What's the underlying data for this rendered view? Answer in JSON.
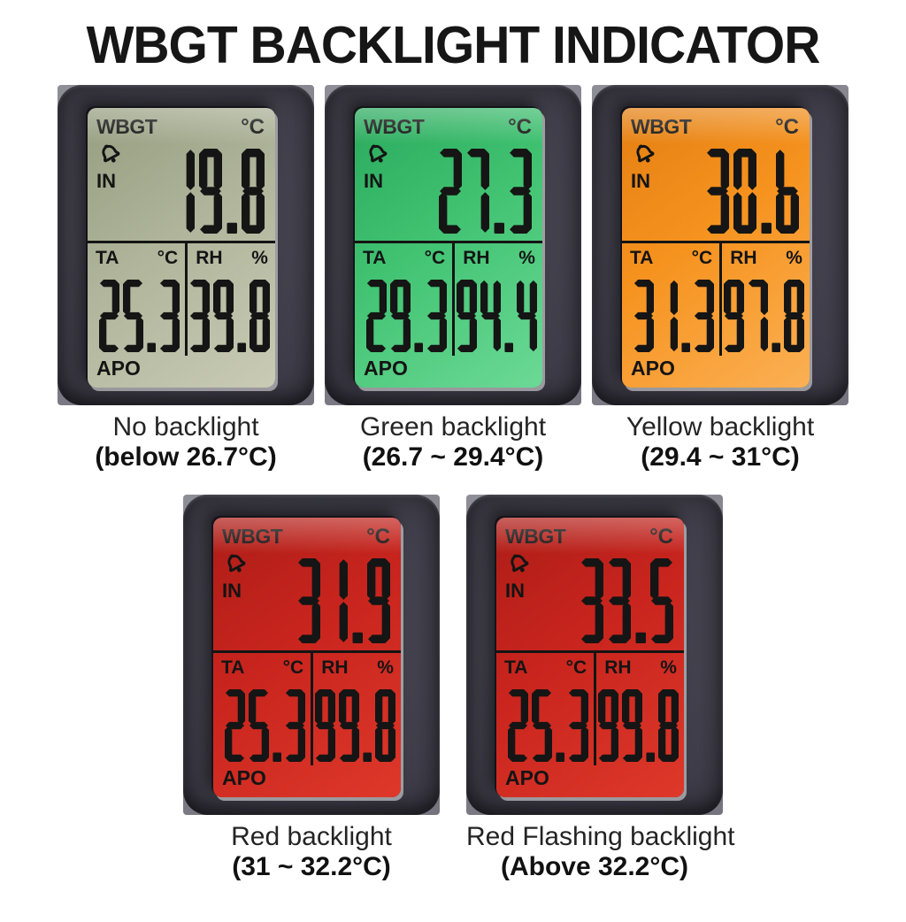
{
  "title": "WBGT BACKLIGHT INDICATOR",
  "lcd_labels": {
    "mode": "WBGT",
    "unit_c": "°C",
    "indoor": "IN",
    "ta": "TA",
    "rh": "RH",
    "percent": "%",
    "apo": "APO",
    "bell_icon": "alarm-bell-icon"
  },
  "colors": {
    "bezel": "#3f3e49",
    "segment": "#151515",
    "photo_background": "#83828c"
  },
  "displays": [
    {
      "id": "no-backlight",
      "wbgt": "19.8",
      "ta": "25.3",
      "rh": "39.8",
      "lcd_dark": "#969d7f",
      "lcd_base": "#afb49a",
      "lcd_light": "#c9cbb5",
      "caption_line1": "No backlight",
      "caption_line2": "(below 26.7°C)"
    },
    {
      "id": "green-backlight",
      "wbgt": "27.3",
      "ta": "29.3",
      "rh": "94.4",
      "lcd_dark": "#2aa95c",
      "lcd_base": "#41c372",
      "lcd_light": "#6cd996",
      "caption_line1": "Green backlight",
      "caption_line2": "(26.7 ~ 29.4°C)"
    },
    {
      "id": "yellow-backlight",
      "wbgt": "30.6",
      "ta": "31.3",
      "rh": "97.8",
      "lcd_dark": "#e37f12",
      "lcd_base": "#f6931f",
      "lcd_light": "#fbb054",
      "caption_line1": "Yellow backlight",
      "caption_line2": "(29.4 ~ 31°C)"
    },
    {
      "id": "red-backlight",
      "wbgt": "31.9",
      "ta": "25.3",
      "rh": "99.8",
      "lcd_dark": "#ad1d17",
      "lcd_base": "#c9251e",
      "lcd_light": "#de382a",
      "caption_line1": "Red backlight",
      "caption_line2": "(31 ~ 32.2°C)"
    },
    {
      "id": "red-flashing-backlight",
      "wbgt": "33.5",
      "ta": "25.3",
      "rh": "99.8",
      "lcd_dark": "#ad1d17",
      "lcd_base": "#c9251e",
      "lcd_light": "#de382a",
      "caption_line1": "Red Flashing backlight",
      "caption_line2": "(Above 32.2°C)"
    }
  ]
}
